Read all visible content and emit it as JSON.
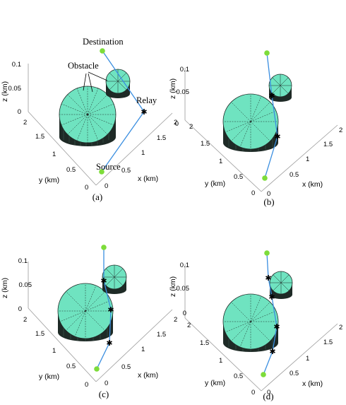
{
  "panels": [
    {
      "caption": "(a)",
      "z_label": "z (km)",
      "y_label": "y (km)",
      "x_label": "x (km)",
      "z_ticks": [
        "0",
        "0.05",
        "0.1"
      ],
      "y_ticks": [
        "2",
        "1.5",
        "1",
        "0.5",
        "0"
      ],
      "x_ticks": [
        "0",
        "0.5",
        "1",
        "1.5",
        "2"
      ],
      "annotations": {
        "destination": "Destination",
        "obstacle": "Obstacle",
        "relay": "Relay",
        "source": "Source"
      },
      "relay_count": 1
    },
    {
      "caption": "(b)",
      "z_label": "z (km)",
      "y_label": "y (km)",
      "x_label": "x (km)",
      "z_ticks": [
        "0",
        "0.05",
        "0.1"
      ],
      "y_ticks": [
        "2",
        "1.5",
        "1",
        "0.5",
        "0"
      ],
      "x_ticks": [
        "0",
        "0.5",
        "1",
        "1.5",
        "2"
      ],
      "relay_count": 2
    },
    {
      "caption": "(c)",
      "z_label": "z (km)",
      "y_label": "y (km)",
      "x_label": "x (km)",
      "z_ticks": [
        "0",
        "0.05",
        "0.1"
      ],
      "y_ticks": [
        "2",
        "1.5",
        "1",
        "0.5",
        "0"
      ],
      "x_ticks": [
        "0",
        "0.5",
        "1",
        "1.5",
        "2"
      ],
      "relay_count": 3
    },
    {
      "caption": "(d)",
      "z_label": "z (km)",
      "y_label": "y (km)",
      "x_label": "x (km)",
      "z_ticks": [
        "0",
        "0.05",
        "0.1"
      ],
      "y_ticks": [
        "2",
        "1.5",
        "1",
        "0.5",
        "0"
      ],
      "x_ticks": [
        "0",
        "0.5",
        "1",
        "1.5",
        "2"
      ],
      "relay_count": 4
    }
  ],
  "colors": {
    "cylinder_fill": "#6fe3c0",
    "cylinder_side": "#1e2a26",
    "path_line": "#3a8ee0",
    "endpoint_marker": "#7ddc3a",
    "relay_marker": "#e8201c",
    "axis_line": "#9a9a9a"
  },
  "icons": {
    "endpoint": "green-dot-icon",
    "relay": "red-star-icon"
  }
}
